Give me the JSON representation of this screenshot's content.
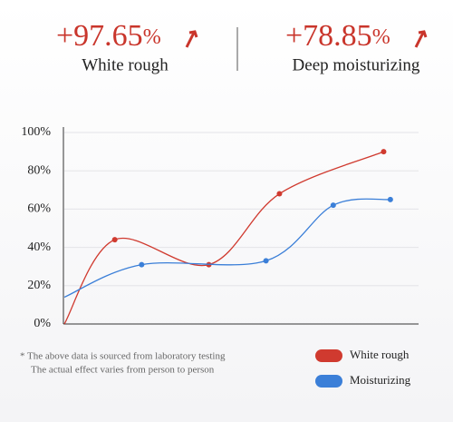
{
  "stats": [
    {
      "value": "+97.65",
      "unit": "%",
      "label": "White rough"
    },
    {
      "value": "+78.85",
      "unit": "%",
      "label": "Deep moisturizing"
    }
  ],
  "chart_data": {
    "type": "line",
    "xlim": [
      0,
      100
    ],
    "ylim": [
      0,
      100
    ],
    "yticks": [
      {
        "value": 0,
        "label": "0%"
      },
      {
        "value": 20,
        "label": "20%"
      },
      {
        "value": 40,
        "label": "40%"
      },
      {
        "value": 60,
        "label": "60%"
      },
      {
        "value": 80,
        "label": "80%"
      },
      {
        "value": 100,
        "label": "100%"
      }
    ],
    "grid": true,
    "legend": "bottom-right",
    "series": [
      {
        "name": "White rough",
        "color": "#d03a2f",
        "x": [
          0,
          15,
          43,
          64,
          95
        ],
        "values": [
          0,
          44,
          31,
          68,
          90
        ]
      },
      {
        "name": "Moisturizing",
        "color": "#3b7fd8",
        "x": [
          0,
          23,
          60,
          80,
          97
        ],
        "values": [
          14,
          31,
          33,
          62,
          65
        ]
      }
    ],
    "footnote": [
      "*  The above data is sourced from laboratory testing",
      "The actual effect varies from person to person"
    ]
  }
}
